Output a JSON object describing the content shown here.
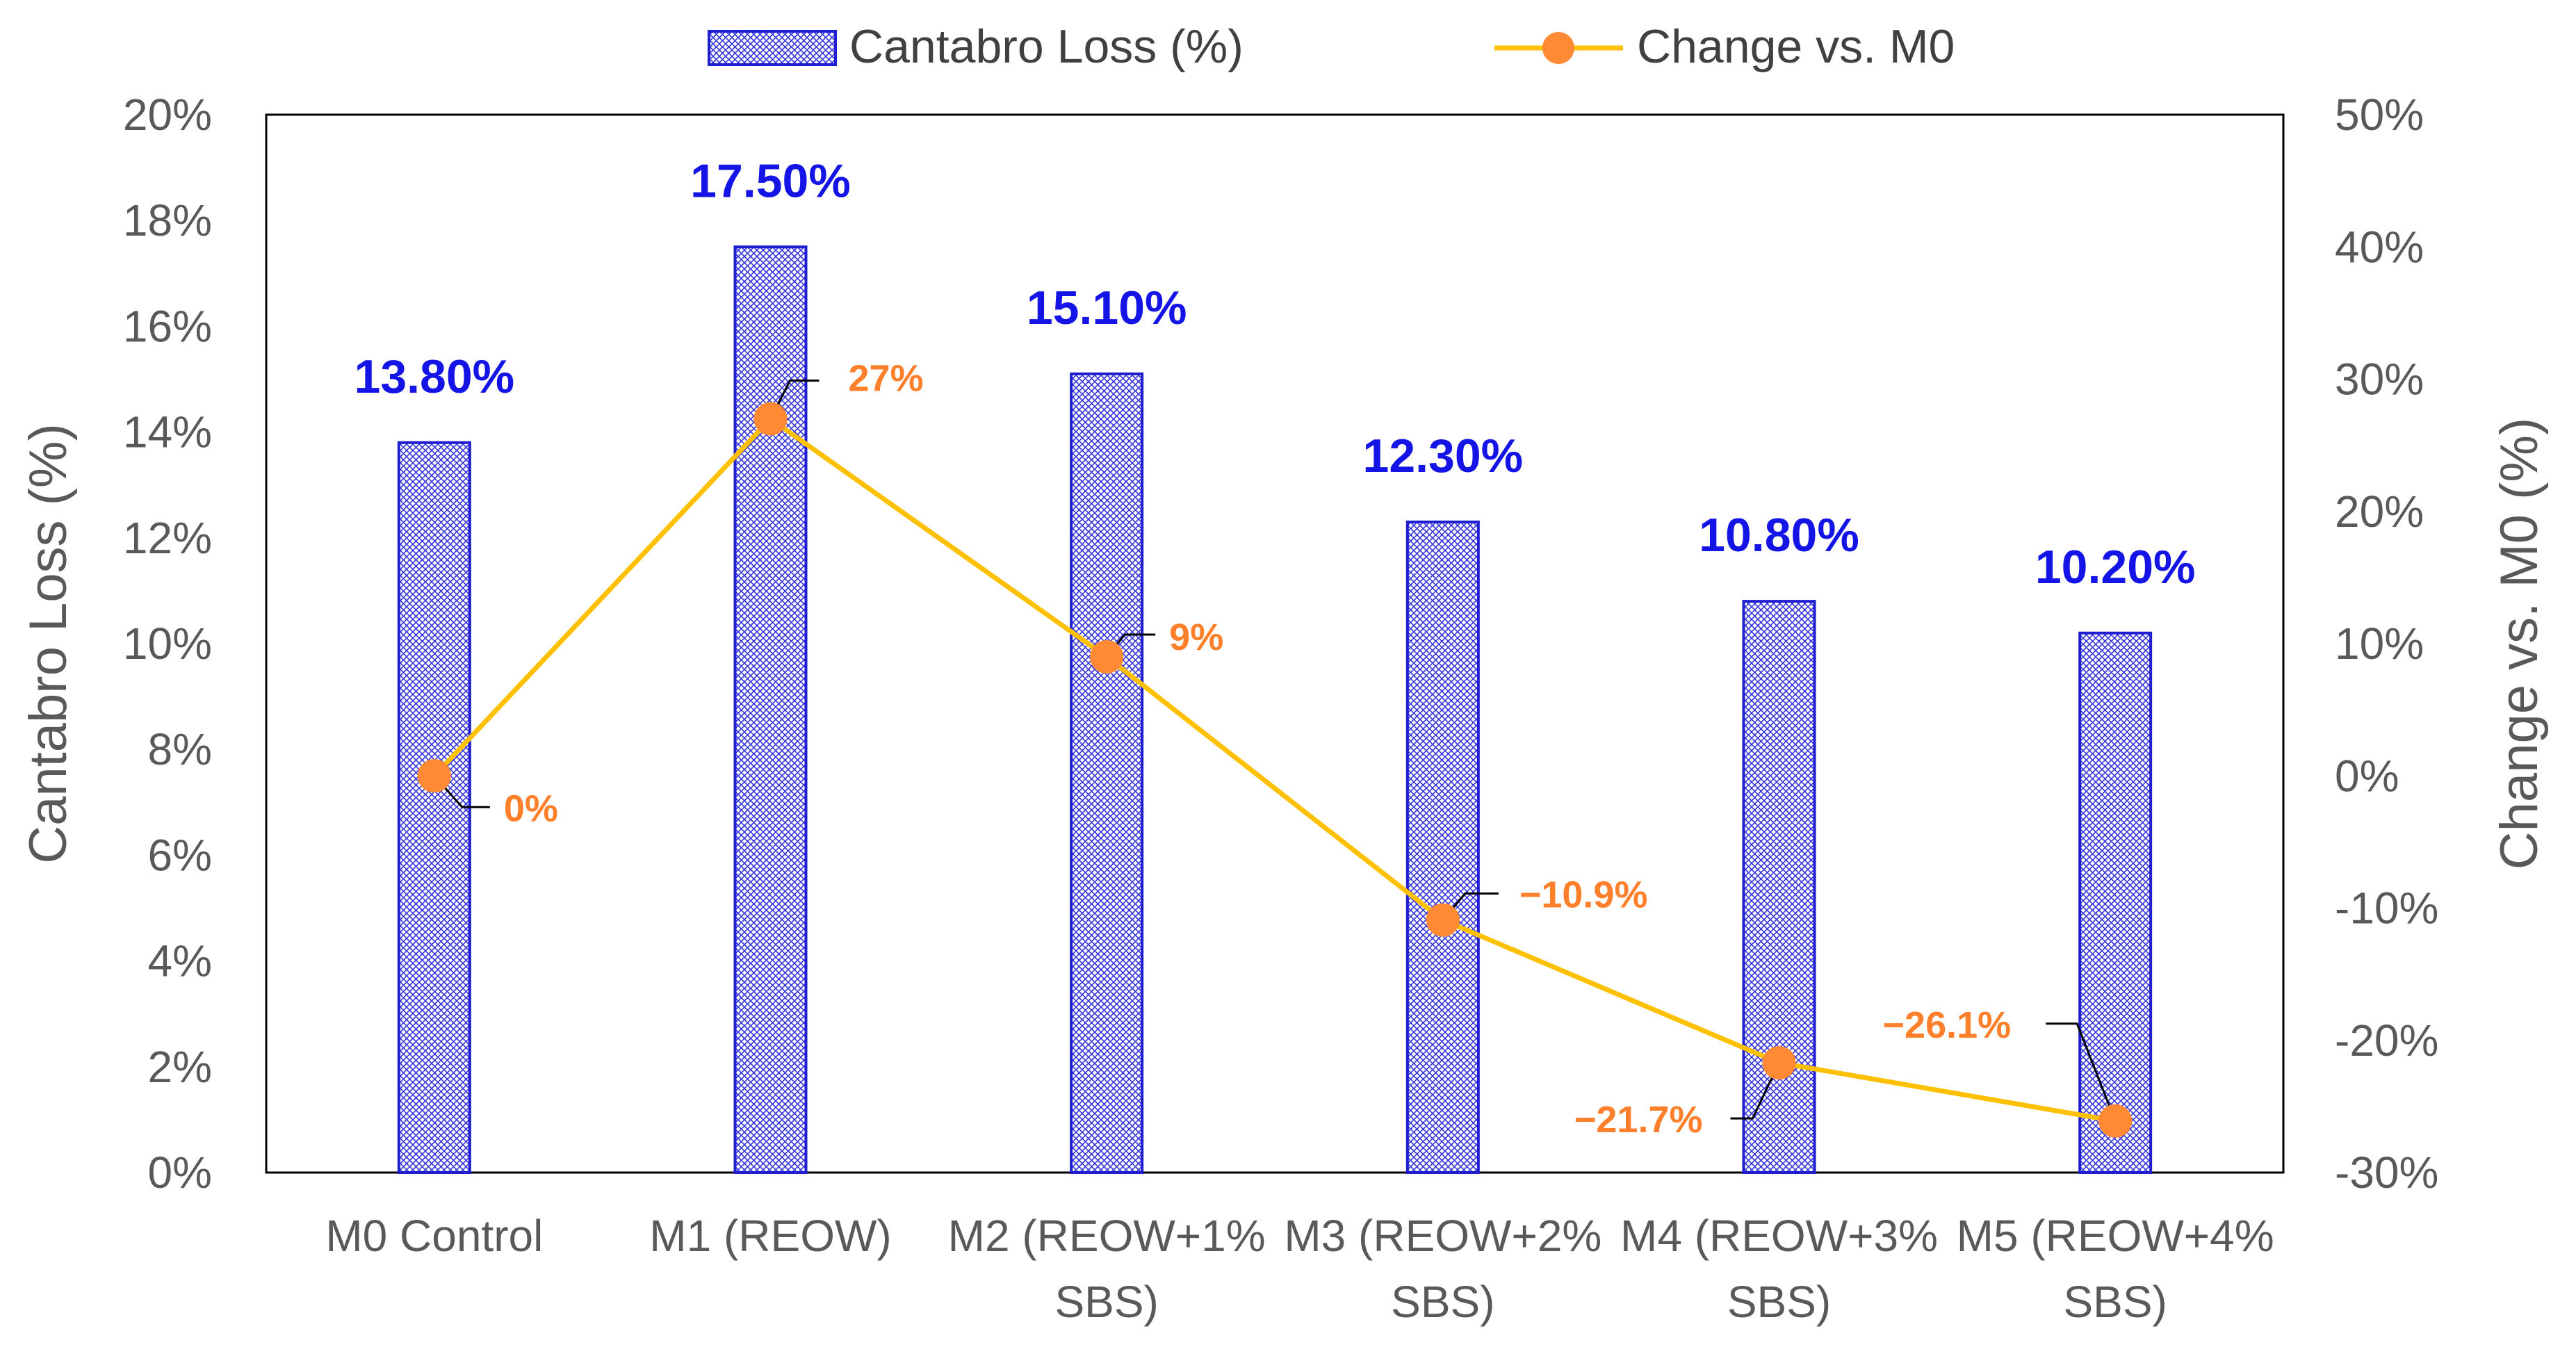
{
  "chart_data": {
    "type": "bar+line",
    "categories": [
      [
        "M0 Control"
      ],
      [
        "M1 (REOW)"
      ],
      [
        "M2 (REOW+1%",
        "SBS)"
      ],
      [
        "M3 (REOW+2%",
        "SBS)"
      ],
      [
        "M4 (REOW+3%",
        "SBS)"
      ],
      [
        "M5 (REOW+4%",
        "SBS)"
      ]
    ],
    "series": [
      {
        "name": "Cantabro Loss (%)",
        "kind": "bar",
        "axis": "left",
        "values": [
          13.8,
          17.5,
          15.1,
          12.3,
          10.8,
          10.2
        ],
        "data_labels": [
          "13.80%",
          "17.50%",
          "15.10%",
          "12.30%",
          "10.80%",
          "10.20%"
        ]
      },
      {
        "name": "Change vs. M0",
        "kind": "line",
        "axis": "right",
        "values": [
          0,
          27,
          9,
          -10.9,
          -21.7,
          -26.1
        ],
        "data_labels": [
          "0%",
          "27%",
          "9%",
          "−10.9%",
          "−21.7%",
          "−26.1%"
        ]
      }
    ],
    "left_axis": {
      "label": "Cantabro Loss (%)",
      "ylim": [
        0,
        20
      ],
      "ticks": [
        0,
        2,
        4,
        6,
        8,
        10,
        12,
        14,
        16,
        18,
        20
      ],
      "tick_labels": [
        "0%",
        "2%",
        "4%",
        "6%",
        "8%",
        "10%",
        "12%",
        "14%",
        "16%",
        "18%",
        "20%"
      ]
    },
    "right_axis": {
      "label": "Change vs. M0 (%)",
      "ylim": [
        -30,
        50
      ],
      "ticks": [
        -30,
        -20,
        -10,
        0,
        10,
        20,
        30,
        40,
        50
      ],
      "tick_labels": [
        "-30%",
        "-20%",
        "-10%",
        "0%",
        "10%",
        "20%",
        "30%",
        "40%",
        "50%"
      ]
    },
    "legend_position": "top-center",
    "grid": false,
    "colors": {
      "bar_edge": "#1f1fd1",
      "bar_pattern": "#3434dd",
      "bar_label": "#1414e6",
      "line": "#ffc000",
      "marker": "#ff8a33",
      "line_label": "#ff7f2a",
      "axis_text": "#595959",
      "frame": "#000000"
    }
  }
}
